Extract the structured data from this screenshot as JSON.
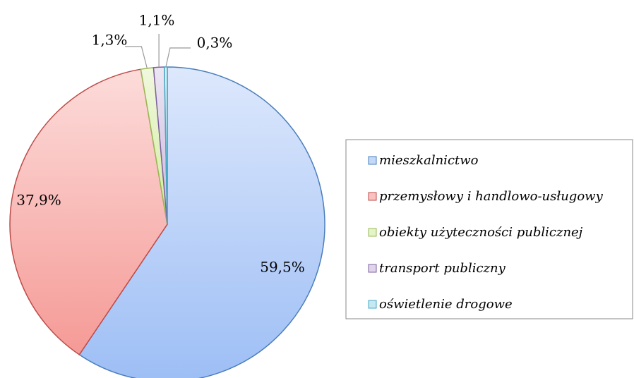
{
  "chart_data": {
    "type": "pie",
    "categories": [
      "mieszkalnictwo",
      "przemysłowy i handlowo-usługowy",
      "obiekty użyteczności publicznej",
      "transport publiczny",
      "oświetlenie drogowe"
    ],
    "values": [
      59.5,
      37.9,
      1.3,
      1.1,
      0.3
    ],
    "value_labels": [
      "59,5%",
      "37,9%",
      "1,3%",
      "1,1%",
      "0,3%"
    ],
    "colors": [
      "#9dbef5",
      "#f59a96",
      "#d4eca0",
      "#c9b7dc",
      "#9fd8e8"
    ],
    "stroke_colors": [
      "#4a7ebb",
      "#be4b48",
      "#98b954",
      "#7d60a0",
      "#46aac5"
    ],
    "legend": "right"
  }
}
